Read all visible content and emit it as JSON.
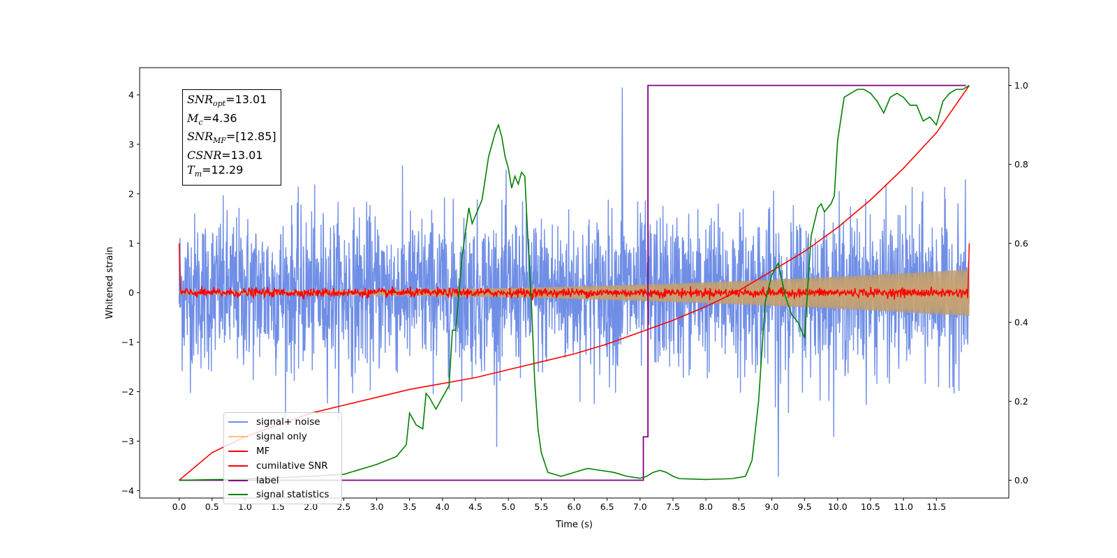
{
  "chart_data": {
    "type": "line",
    "xlabel": "Time (s)",
    "ylabel": "Whitened strain",
    "xlim": [
      -0.6,
      12.6
    ],
    "ylim": [
      -4.15,
      4.55
    ],
    "ylim_right": [
      -0.045,
      1.045
    ],
    "x_ticks": [
      "0.0",
      "0.5",
      "1.0",
      "1.5",
      "2.0",
      "2.5",
      "3.0",
      "3.5",
      "4.0",
      "4.5",
      "5.0",
      "5.5",
      "6.0",
      "6.5",
      "7.0",
      "7.5",
      "8.0",
      "8.5",
      "9.0",
      "9.5",
      "10.0",
      "10.5",
      "11.0",
      "11.5"
    ],
    "y_ticks_left": [
      "4",
      "3",
      "2",
      "1",
      "0",
      "−1",
      "−2",
      "−3",
      "−4"
    ],
    "y_ticks_right": [
      "1.0",
      "0.8",
      "0.6",
      "0.4",
      "0.2",
      "0.0"
    ],
    "duration": 12.0,
    "series": [
      {
        "name": "signal+ noise",
        "color": "#6f8ee6",
        "axis": "left",
        "envelope_typical": 1.3,
        "peaks": [
          4.15,
          -3.72
        ]
      },
      {
        "name": "signal only",
        "color": "#ffbf75",
        "axis": "left",
        "amplitude_start": 0.03,
        "amplitude_end": 0.47
      },
      {
        "name": "MF",
        "color": "#ff0000",
        "axis": "left",
        "baseline": 0.0,
        "spike_start": 1.0,
        "spike_end": 1.0
      },
      {
        "name": "cumilative SNR",
        "color": "#ff0000",
        "axis": "right",
        "x": [
          0,
          0.5,
          1,
          1.5,
          2,
          2.5,
          3,
          3.5,
          4,
          4.5,
          5,
          5.5,
          6,
          6.5,
          7,
          7.5,
          8,
          8.5,
          9,
          9.5,
          10,
          10.5,
          11,
          11.5,
          12
        ],
        "y": [
          0.0,
          0.07,
          0.11,
          0.14,
          0.17,
          0.19,
          0.21,
          0.23,
          0.245,
          0.26,
          0.28,
          0.3,
          0.32,
          0.345,
          0.375,
          0.405,
          0.44,
          0.48,
          0.53,
          0.58,
          0.64,
          0.71,
          0.79,
          0.88,
          1.0
        ]
      },
      {
        "name": "label",
        "color": "#800080",
        "axis": "right",
        "x": [
          0,
          7.05,
          7.05,
          7.12,
          7.12,
          11.95
        ],
        "y": [
          0,
          0,
          0.11,
          0.11,
          1.0,
          1.0
        ]
      },
      {
        "name": "signal statistics",
        "color": "#008000",
        "axis": "right",
        "x": [
          0,
          1,
          2,
          2.5,
          3,
          3.3,
          3.45,
          3.5,
          3.6,
          3.7,
          3.75,
          3.8,
          3.9,
          4.0,
          4.1,
          4.15,
          4.2,
          4.3,
          4.4,
          4.45,
          4.5,
          4.6,
          4.7,
          4.8,
          4.85,
          4.9,
          4.95,
          5.0,
          5.05,
          5.1,
          5.15,
          5.2,
          5.25,
          5.3,
          5.35,
          5.4,
          5.45,
          5.5,
          5.6,
          5.7,
          5.8,
          6.0,
          6.2,
          6.4,
          6.6,
          6.8,
          7.0,
          7.1,
          7.2,
          7.3,
          7.4,
          7.5,
          7.6,
          8.0,
          8.4,
          8.6,
          8.7,
          8.8,
          8.9,
          9.0,
          9.1,
          9.2,
          9.3,
          9.4,
          9.5,
          9.55,
          9.6,
          9.7,
          9.75,
          9.8,
          9.9,
          9.95,
          10.0,
          10.1,
          10.2,
          10.3,
          10.4,
          10.5,
          10.6,
          10.7,
          10.8,
          10.9,
          11.0,
          11.1,
          11.2,
          11.3,
          11.4,
          11.5,
          11.6,
          11.7,
          11.8,
          11.9,
          12.0
        ],
        "y": [
          0,
          0.003,
          0.01,
          0.015,
          0.04,
          0.06,
          0.09,
          0.17,
          0.14,
          0.13,
          0.22,
          0.21,
          0.18,
          0.21,
          0.24,
          0.38,
          0.38,
          0.57,
          0.69,
          0.65,
          0.67,
          0.71,
          0.82,
          0.88,
          0.9,
          0.87,
          0.82,
          0.79,
          0.74,
          0.77,
          0.75,
          0.78,
          0.77,
          0.6,
          0.45,
          0.25,
          0.13,
          0.07,
          0.02,
          0.015,
          0.01,
          0.02,
          0.03,
          0.025,
          0.02,
          0.01,
          0.005,
          0.01,
          0.02,
          0.025,
          0.02,
          0.01,
          0.004,
          0.002,
          0.004,
          0.01,
          0.05,
          0.2,
          0.45,
          0.52,
          0.55,
          0.47,
          0.42,
          0.4,
          0.36,
          0.5,
          0.62,
          0.69,
          0.7,
          0.68,
          0.7,
          0.72,
          0.86,
          0.97,
          0.98,
          0.99,
          0.99,
          0.98,
          0.96,
          0.93,
          0.97,
          0.98,
          0.97,
          0.95,
          0.95,
          0.91,
          0.92,
          0.9,
          0.96,
          0.98,
          0.99,
          0.99,
          1.0
        ]
      }
    ]
  },
  "info_box": {
    "snr_opt": "=13.01",
    "mc": "=4.36",
    "snr_mf": "=[12.85]",
    "csnr": "=13.01",
    "tm": "=12.29"
  },
  "legend": {
    "position": "lower-left",
    "items": [
      {
        "label": "signal+ noise",
        "color": "#6f8ee6"
      },
      {
        "label": "signal only",
        "color": "#ffbf75"
      },
      {
        "label": "MF",
        "color": "#ff0000"
      },
      {
        "label": "cumilative SNR",
        "color": "#ff0000"
      },
      {
        "label": "label",
        "color": "#800080"
      },
      {
        "label": "signal statistics",
        "color": "#008000"
      }
    ]
  }
}
